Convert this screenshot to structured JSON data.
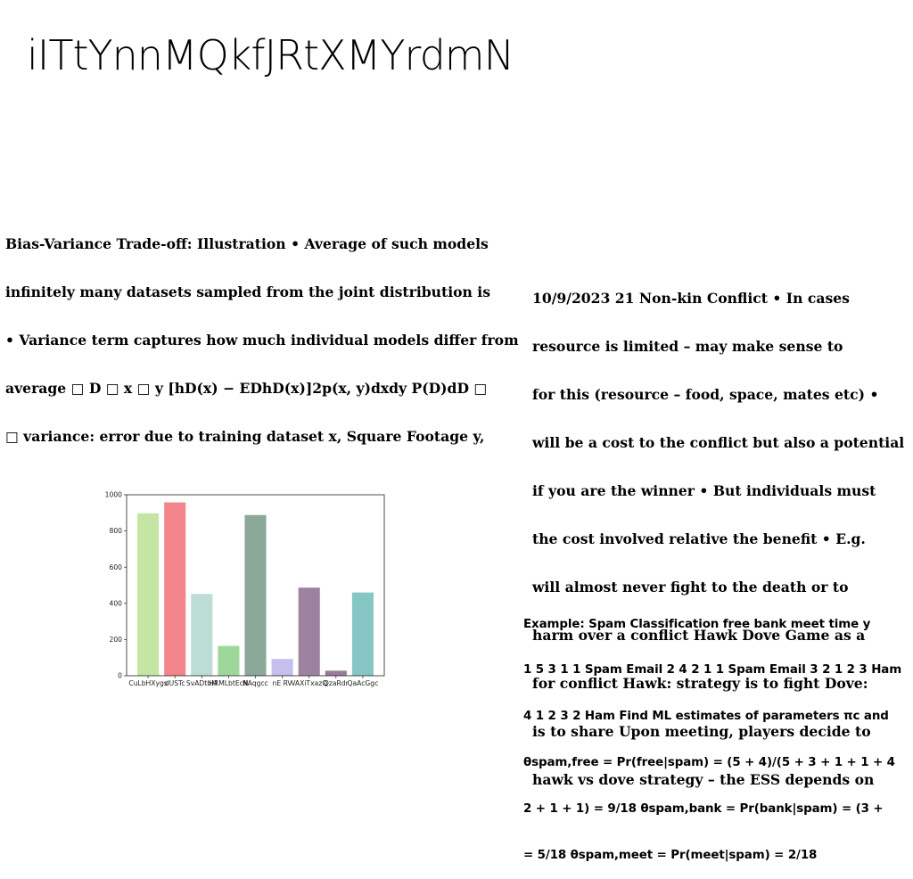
{
  "title": "iITtYnnMQkfJRtXMYrdmN",
  "bias_block": {
    "lines": [
      "Bias-Variance Trade-off: Illustration • Average of such models",
      "infinitely many datasets sampled from the joint distribution is",
      "• Variance term captures how much individual models differ from",
      "average □ D □ x □ y [hD(x) − EDhD(x)]2p(x, y)dxdy P(D)dD □",
      "□ variance: error due to training dataset x, Square Footage y,"
    ]
  },
  "conflict_block": {
    "lines": [
      "10/9/2023 21 Non-kin Conflict • In cases",
      "resource is limited – may make sense to",
      "for this (resource – food, space, mates etc) •",
      "will be a cost to the conflict but also a potential",
      "if you are the winner • But individuals must",
      "the cost involved relative the benefit • E.g.",
      "will almost never fight to the death or to",
      "harm over a conflict Hawk Dove Game as a",
      "for conflict Hawk: strategy is to fight Dove:",
      "is to share Upon meeting, players decide to",
      "hawk vs dove strategy – the ESS depends on"
    ]
  },
  "spam_block": {
    "lines": [
      "Example: Spam Classification free bank meet time y",
      "1 5 3 1 1 Spam Email 2 4 2 1 1 Spam Email 3 2 1 2 3 Ham",
      "4 1 2 3 2 Ham Find ML estimates of parameters πc and",
      "θspam,free = Pr(free|spam) = (5 + 4)/(5 + 3 + 1 + 1 + 4",
      "2 + 1 + 1) = 9/18 θspam,bank = Pr(bank|spam) = (3 +",
      "= 5/18 θspam,meet = Pr(meet|spam) = 2/18"
    ]
  },
  "chart_data": {
    "type": "bar",
    "categories": [
      "CuLbHXygs",
      "dUSTc",
      "SvADtbM",
      "HRMLbtEcN",
      "NAqgcc",
      "nE RV",
      "VAXiTxazQ",
      "QzaRdr",
      "QaAcGgc"
    ],
    "values": [
      898,
      958,
      452,
      165,
      888,
      93,
      487,
      28,
      460
    ],
    "colors": [
      "#c4e5a4",
      "#f2868c",
      "#bcddd6",
      "#9dd89a",
      "#8ba898",
      "#c5bfee",
      "#9c829e",
      "#9a7b9a",
      "#86c7c6"
    ],
    "ylim": [
      0,
      1000
    ],
    "yticks": [
      0,
      200,
      400,
      600,
      800,
      1000
    ],
    "title": "",
    "xlabel": "",
    "ylabel": ""
  }
}
